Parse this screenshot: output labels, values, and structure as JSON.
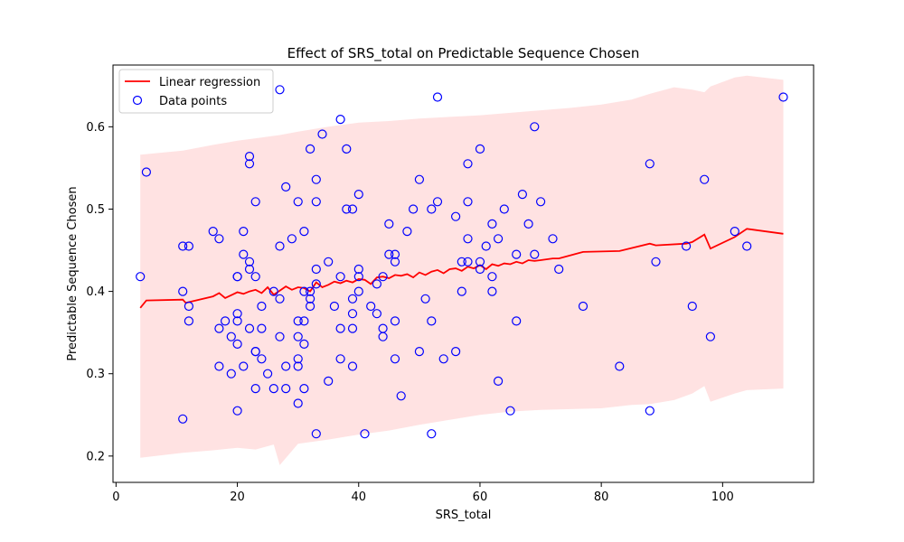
{
  "colors": {
    "regression_line": "#ff0000",
    "confidence_band": "#ffb3b3",
    "points": "#0000ff",
    "axes": "#000000",
    "background": "#ffffff"
  },
  "chart_data": {
    "type": "scatter",
    "title": "Effect of SRS_total on Predictable Sequence Chosen",
    "xlabel": "SRS_total",
    "ylabel": "Predictable Sequence Chosen",
    "xlim": [
      -0.5,
      115
    ],
    "ylim": [
      0.168,
      0.675
    ],
    "x_ticks": [
      0,
      20,
      40,
      60,
      80,
      100
    ],
    "y_ticks": [
      0.2,
      0.3,
      0.4,
      0.5,
      0.6
    ],
    "y_tick_labels": [
      "0.2",
      "0.3",
      "0.4",
      "0.5",
      "0.6"
    ],
    "grid": false,
    "legend": {
      "position": "top-left",
      "entries": [
        {
          "label": "Linear regression",
          "marker": "line"
        },
        {
          "label": "Data points",
          "marker": "open-circle"
        }
      ]
    },
    "series": [
      {
        "name": "Linear regression",
        "kind": "line",
        "x": [
          4,
          5,
          11,
          11.5,
          16,
          17,
          18,
          20,
          21,
          22,
          23,
          24,
          25,
          26,
          27,
          28,
          29,
          30,
          31,
          32,
          33,
          34,
          35,
          36,
          37,
          38,
          39,
          40,
          41,
          42,
          43,
          44,
          45,
          46,
          47,
          48,
          49,
          50,
          51,
          52,
          53,
          54,
          55,
          56,
          57,
          58,
          59,
          60,
          61,
          62,
          63,
          64,
          65,
          66,
          67,
          68,
          69,
          70,
          72,
          73,
          77,
          83,
          88,
          89,
          94,
          95,
          97,
          98,
          102,
          104,
          110
        ],
        "y": [
          0.38,
          0.389,
          0.39,
          0.386,
          0.394,
          0.398,
          0.392,
          0.399,
          0.397,
          0.4,
          0.402,
          0.398,
          0.405,
          0.396,
          0.401,
          0.406,
          0.402,
          0.405,
          0.404,
          0.4,
          0.411,
          0.405,
          0.408,
          0.412,
          0.41,
          0.413,
          0.411,
          0.415,
          0.414,
          0.409,
          0.417,
          0.418,
          0.416,
          0.42,
          0.419,
          0.421,
          0.417,
          0.423,
          0.42,
          0.424,
          0.426,
          0.422,
          0.427,
          0.428,
          0.425,
          0.43,
          0.428,
          0.432,
          0.427,
          0.433,
          0.431,
          0.434,
          0.433,
          0.436,
          0.434,
          0.438,
          0.437,
          0.438,
          0.44,
          0.44,
          0.448,
          0.449,
          0.458,
          0.456,
          0.458,
          0.46,
          0.469,
          0.452,
          0.466,
          0.476,
          0.47
        ]
      },
      {
        "name": "Confidence band",
        "kind": "band",
        "x": [
          4,
          11,
          16,
          20,
          23,
          26,
          27,
          30,
          35,
          40,
          45,
          50,
          55,
          60,
          65,
          70,
          75,
          80,
          85,
          88,
          92,
          95,
          97,
          98,
          102,
          104,
          110
        ],
        "lower": [
          0.198,
          0.204,
          0.207,
          0.21,
          0.208,
          0.214,
          0.189,
          0.215,
          0.22,
          0.226,
          0.231,
          0.238,
          0.244,
          0.25,
          0.254,
          0.256,
          0.257,
          0.258,
          0.262,
          0.263,
          0.268,
          0.276,
          0.285,
          0.266,
          0.276,
          0.28,
          0.282
        ],
        "upper": [
          0.566,
          0.571,
          0.578,
          0.583,
          0.586,
          0.589,
          0.59,
          0.594,
          0.6,
          0.605,
          0.607,
          0.61,
          0.612,
          0.614,
          0.617,
          0.62,
          0.623,
          0.627,
          0.633,
          0.64,
          0.648,
          0.645,
          0.642,
          0.649,
          0.66,
          0.662,
          0.657
        ]
      },
      {
        "name": "Data points",
        "kind": "scatter",
        "points": [
          [
            4,
            0.418
          ],
          [
            5,
            0.545
          ],
          [
            11,
            0.455
          ],
          [
            11,
            0.4
          ],
          [
            11,
            0.245
          ],
          [
            12,
            0.455
          ],
          [
            12,
            0.382
          ],
          [
            12,
            0.364
          ],
          [
            16,
            0.473
          ],
          [
            17,
            0.464
          ],
          [
            17,
            0.355
          ],
          [
            17,
            0.309
          ],
          [
            18,
            0.364
          ],
          [
            19,
            0.345
          ],
          [
            19,
            0.3
          ],
          [
            20,
            0.418
          ],
          [
            20,
            0.418
          ],
          [
            20,
            0.373
          ],
          [
            20,
            0.364
          ],
          [
            20,
            0.336
          ],
          [
            20,
            0.255
          ],
          [
            21,
            0.473
          ],
          [
            21,
            0.445
          ],
          [
            21,
            0.309
          ],
          [
            22,
            0.564
          ],
          [
            22,
            0.555
          ],
          [
            22,
            0.436
          ],
          [
            22,
            0.427
          ],
          [
            22,
            0.355
          ],
          [
            23,
            0.509
          ],
          [
            23,
            0.418
          ],
          [
            23,
            0.327
          ],
          [
            23,
            0.327
          ],
          [
            23,
            0.282
          ],
          [
            24,
            0.382
          ],
          [
            24,
            0.355
          ],
          [
            24,
            0.318
          ],
          [
            25,
            0.3
          ],
          [
            26,
            0.4
          ],
          [
            26,
            0.282
          ],
          [
            27,
            0.645
          ],
          [
            27,
            0.455
          ],
          [
            27,
            0.391
          ],
          [
            27,
            0.345
          ],
          [
            28,
            0.527
          ],
          [
            28,
            0.309
          ],
          [
            28,
            0.282
          ],
          [
            29,
            0.464
          ],
          [
            30,
            0.509
          ],
          [
            30,
            0.364
          ],
          [
            30,
            0.345
          ],
          [
            30,
            0.318
          ],
          [
            30,
            0.309
          ],
          [
            30,
            0.264
          ],
          [
            31,
            0.473
          ],
          [
            31,
            0.4
          ],
          [
            31,
            0.364
          ],
          [
            31,
            0.336
          ],
          [
            31,
            0.282
          ],
          [
            32,
            0.573
          ],
          [
            32,
            0.4
          ],
          [
            32,
            0.391
          ],
          [
            32,
            0.382
          ],
          [
            33,
            0.536
          ],
          [
            33,
            0.509
          ],
          [
            33,
            0.427
          ],
          [
            33,
            0.409
          ],
          [
            33,
            0.227
          ],
          [
            34,
            0.591
          ],
          [
            35,
            0.436
          ],
          [
            35,
            0.291
          ],
          [
            36,
            0.382
          ],
          [
            37,
            0.609
          ],
          [
            37,
            0.418
          ],
          [
            37,
            0.355
          ],
          [
            37,
            0.318
          ],
          [
            38,
            0.573
          ],
          [
            38,
            0.5
          ],
          [
            39,
            0.5
          ],
          [
            39,
            0.391
          ],
          [
            39,
            0.373
          ],
          [
            39,
            0.355
          ],
          [
            39,
            0.309
          ],
          [
            40,
            0.518
          ],
          [
            40,
            0.427
          ],
          [
            40,
            0.418
          ],
          [
            40,
            0.4
          ],
          [
            41,
            0.227
          ],
          [
            42,
            0.382
          ],
          [
            43,
            0.409
          ],
          [
            43,
            0.373
          ],
          [
            44,
            0.418
          ],
          [
            44,
            0.355
          ],
          [
            44,
            0.345
          ],
          [
            45,
            0.482
          ],
          [
            45,
            0.445
          ],
          [
            46,
            0.445
          ],
          [
            46,
            0.436
          ],
          [
            46,
            0.364
          ],
          [
            46,
            0.318
          ],
          [
            47,
            0.273
          ],
          [
            48,
            0.473
          ],
          [
            49,
            0.5
          ],
          [
            50,
            0.536
          ],
          [
            50,
            0.327
          ],
          [
            51,
            0.391
          ],
          [
            52,
            0.5
          ],
          [
            52,
            0.364
          ],
          [
            52,
            0.227
          ],
          [
            53,
            0.636
          ],
          [
            53,
            0.509
          ],
          [
            54,
            0.318
          ],
          [
            56,
            0.491
          ],
          [
            56,
            0.327
          ],
          [
            57,
            0.436
          ],
          [
            57,
            0.4
          ],
          [
            58,
            0.555
          ],
          [
            58,
            0.509
          ],
          [
            58,
            0.464
          ],
          [
            58,
            0.436
          ],
          [
            60,
            0.573
          ],
          [
            60,
            0.436
          ],
          [
            60,
            0.427
          ],
          [
            61,
            0.455
          ],
          [
            62,
            0.482
          ],
          [
            62,
            0.418
          ],
          [
            62,
            0.4
          ],
          [
            63,
            0.464
          ],
          [
            63,
            0.291
          ],
          [
            64,
            0.5
          ],
          [
            65,
            0.255
          ],
          [
            66,
            0.445
          ],
          [
            66,
            0.364
          ],
          [
            67,
            0.518
          ],
          [
            68,
            0.482
          ],
          [
            69,
            0.6
          ],
          [
            69,
            0.445
          ],
          [
            70,
            0.509
          ],
          [
            72,
            0.464
          ],
          [
            73,
            0.427
          ],
          [
            77,
            0.382
          ],
          [
            83,
            0.309
          ],
          [
            88,
            0.555
          ],
          [
            88,
            0.255
          ],
          [
            89,
            0.436
          ],
          [
            94,
            0.455
          ],
          [
            95,
            0.382
          ],
          [
            97,
            0.536
          ],
          [
            98,
            0.345
          ],
          [
            102,
            0.473
          ],
          [
            104,
            0.455
          ],
          [
            110,
            0.636
          ]
        ]
      }
    ]
  }
}
